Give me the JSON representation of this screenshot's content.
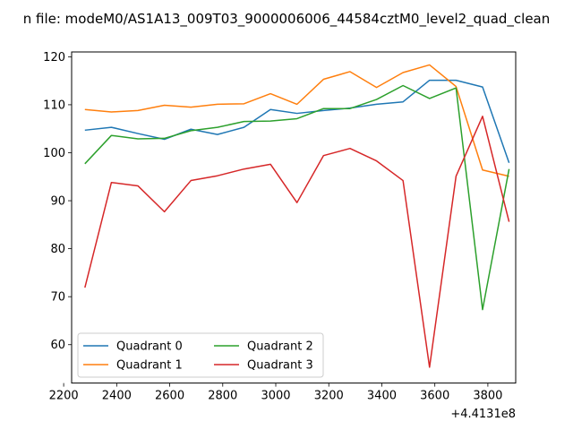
{
  "chart_data": {
    "type": "line",
    "title": "n file: modeM0/AS1A13_009T03_9000006006_44584cztM0_level2_quad_clean",
    "xlabel": "",
    "ylabel": "",
    "x_offset_text": "+4.4131e8",
    "xlim": [
      2230,
      3905
    ],
    "ylim": [
      52,
      121
    ],
    "xticks": [
      2200,
      2400,
      2600,
      2800,
      3000,
      3200,
      3400,
      3600,
      3800
    ],
    "yticks": [
      60,
      70,
      80,
      90,
      100,
      110,
      120
    ],
    "grid": false,
    "legend": {
      "position": "lower-left",
      "columns": 2
    },
    "x": [
      2280,
      2380,
      2480,
      2580,
      2680,
      2780,
      2880,
      2980,
      3080,
      3180,
      3280,
      3380,
      3480,
      3580,
      3680,
      3780,
      3880
    ],
    "series": [
      {
        "name": "Quadrant 0",
        "color": "#1f77b4",
        "values": [
          104.7,
          105.3,
          104.0,
          102.8,
          104.9,
          103.8,
          105.3,
          109.0,
          108.2,
          108.8,
          109.3,
          110.1,
          110.6,
          115.1,
          115.1,
          113.7,
          97.9
        ]
      },
      {
        "name": "Quadrant 1",
        "color": "#ff7f0e",
        "values": [
          109.0,
          108.5,
          108.8,
          109.9,
          109.5,
          110.1,
          110.2,
          112.3,
          110.1,
          115.3,
          116.9,
          113.6,
          116.7,
          118.3,
          113.8,
          96.4,
          95.1
        ]
      },
      {
        "name": "Quadrant 2",
        "color": "#2ca02c",
        "values": [
          97.7,
          103.6,
          102.9,
          103.0,
          104.6,
          105.3,
          106.5,
          106.6,
          107.1,
          109.2,
          109.2,
          111.1,
          114.0,
          111.3,
          113.5,
          67.3,
          96.6
        ]
      },
      {
        "name": "Quadrant 3",
        "color": "#d62728",
        "values": [
          71.9,
          93.8,
          93.1,
          87.7,
          94.2,
          95.2,
          96.6,
          97.6,
          89.6,
          99.4,
          100.9,
          98.3,
          94.2,
          55.3,
          95.1,
          107.6,
          85.6
        ]
      }
    ]
  }
}
